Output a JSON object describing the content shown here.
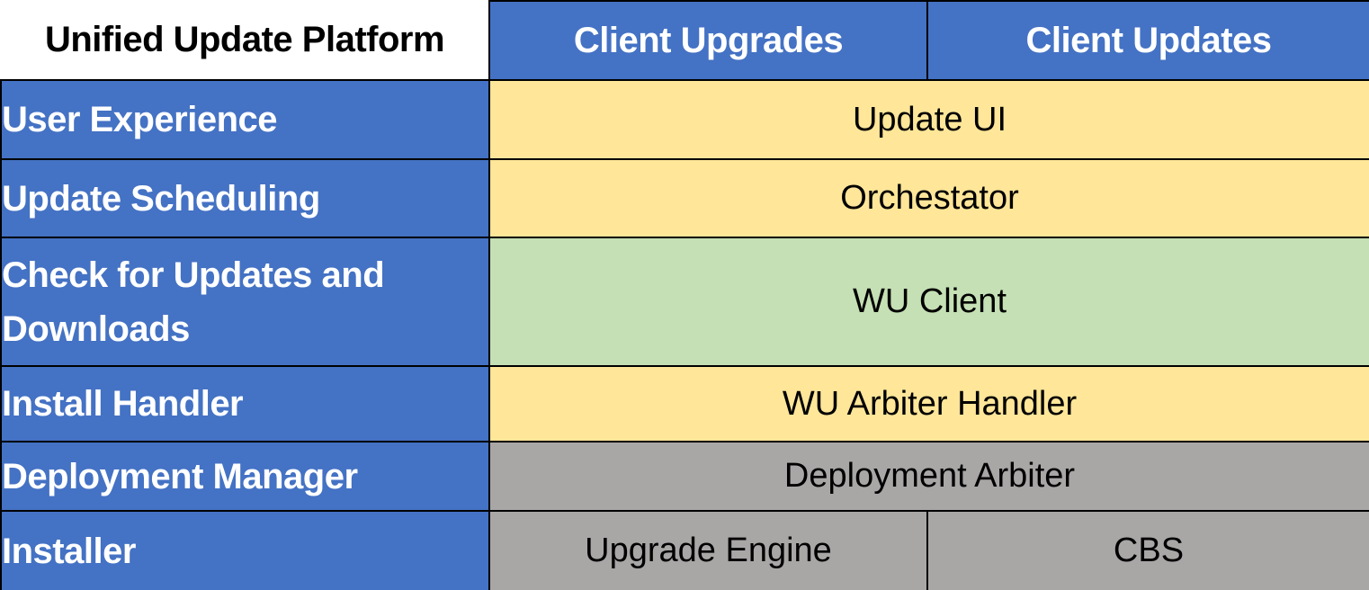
{
  "title": "Unified Update Platform",
  "columns": [
    {
      "label": "Client Upgrades"
    },
    {
      "label": "Client Updates"
    }
  ],
  "rows": [
    {
      "label": "User Experience",
      "cells": [
        {
          "text": "Update UI",
          "bg": "#FFE699",
          "span": 2
        }
      ]
    },
    {
      "label": "Update Scheduling",
      "cells": [
        {
          "text": "Orchestator",
          "bg": "#FFE699",
          "span": 2
        }
      ]
    },
    {
      "label": "Check for Updates and Downloads",
      "cells": [
        {
          "text": "WU Client",
          "bg": "#C5E0B4",
          "span": 2
        }
      ]
    },
    {
      "label": "Install Handler",
      "cells": [
        {
          "text": "WU Arbiter Handler",
          "bg": "#FFE699",
          "span": 2
        }
      ]
    },
    {
      "label": "Deployment Manager",
      "cells": [
        {
          "text": "Deployment Arbiter",
          "bg": "#A9A6A6",
          "span": 2
        }
      ]
    },
    {
      "label": "Installer",
      "cells": [
        {
          "text": "Upgrade Engine",
          "bg": "#A9A6A6",
          "span": 1
        },
        {
          "text": "CBS",
          "bg": "#A9A6A6",
          "span": 1
        }
      ]
    }
  ],
  "colors": {
    "header_blue": "#4472C4",
    "body_yellow": "#FFE699",
    "body_green": "#C5E0B4",
    "body_gray": "#A9A6A6",
    "border_black": "#000000",
    "header_text": "#ffffff",
    "body_text": "#000000"
  }
}
